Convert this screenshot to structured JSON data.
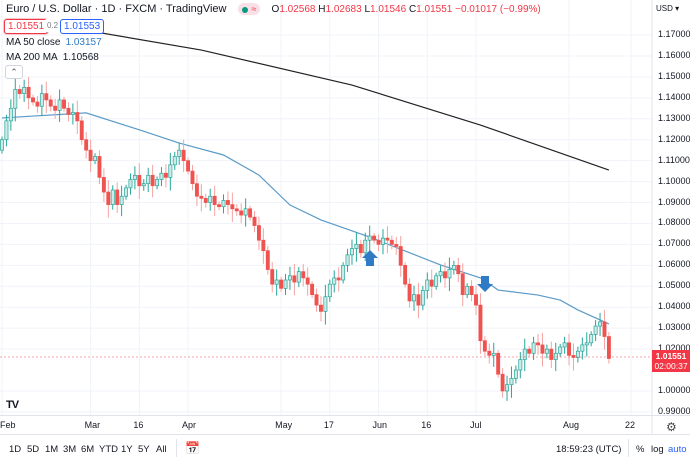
{
  "header": {
    "title": "Euro / U.S. Dollar · 1D · FXCM · TradingView",
    "market_status_icon": "market-open-dot-icon",
    "ohlc": {
      "o_label": "O",
      "o": "1.02568",
      "h_label": "H",
      "h": "1.02683",
      "l_label": "L",
      "l": "1.01546",
      "c_label": "C",
      "c": "1.01551",
      "change": "−0.01017 (−0.99%)"
    },
    "sell_price": "1.01551",
    "spread": "0.2",
    "buy_price": "1.01553"
  },
  "indicators": [
    {
      "label": "MA 50 close",
      "value": "1.03157",
      "color": "#5b9bc8"
    },
    {
      "label": "MA 200 MA",
      "value": "1.10568",
      "color": "#222222"
    }
  ],
  "price_axis": {
    "currency": "USD",
    "ticks": [
      "1.17000",
      "1.16000",
      "1.15000",
      "1.14000",
      "1.13000",
      "1.12000",
      "1.11000",
      "1.10000",
      "1.09000",
      "1.08000",
      "1.07000",
      "1.06000",
      "1.05000",
      "1.04000",
      "1.03000",
      "1.02000",
      "1.00000",
      "0.99000"
    ],
    "last_price": "1.01551",
    "countdown": "02:00:37"
  },
  "time_axis": {
    "ticks": [
      {
        "label": "Feb",
        "bar": 0
      },
      {
        "label": "Mar",
        "bar": 20
      },
      {
        "label": "16",
        "bar": 31
      },
      {
        "label": "Apr",
        "bar": 42
      },
      {
        "label": "May",
        "bar": 63
      },
      {
        "label": "17",
        "bar": 74
      },
      {
        "label": "Jun",
        "bar": 85
      },
      {
        "label": "16",
        "bar": 96
      },
      {
        "label": "Jul",
        "bar": 107
      },
      {
        "label": "Aug",
        "bar": 128
      },
      {
        "label": "22",
        "bar": 142
      }
    ]
  },
  "toolbar": {
    "ranges": [
      "1D",
      "5D",
      "1M",
      "3M",
      "6M",
      "YTD",
      "1Y",
      "5Y",
      "All"
    ],
    "time": "18:59:23 (UTC)",
    "percent": "%",
    "log": "log",
    "auto": "auto"
  },
  "colors": {
    "up": "#26a69a",
    "up_fill": "#cdeae6",
    "down": "#ef5350",
    "arrow": "#2f7bc6",
    "ma50": "#5b9bc8",
    "ma200": "#222222"
  },
  "annotations": [
    {
      "type": "arrow-up",
      "bar": 83,
      "price": 1.0635
    },
    {
      "type": "arrow-down",
      "bar": 109,
      "price": 1.051
    }
  ],
  "chart_data": {
    "type": "candlestick",
    "symbol": "EURUSD",
    "interval": "1D",
    "ylim": [
      0.985,
      1.175
    ],
    "closes": [
      1.12,
      1.129,
      1.135,
      1.144,
      1.142,
      1.145,
      1.14,
      1.138,
      1.136,
      1.142,
      1.139,
      1.136,
      1.134,
      1.139,
      1.135,
      1.132,
      1.133,
      1.129,
      1.12,
      1.115,
      1.11,
      1.112,
      1.102,
      1.095,
      1.089,
      1.096,
      1.089,
      1.093,
      1.097,
      1.101,
      1.103,
      1.098,
      1.099,
      1.103,
      1.098,
      1.101,
      1.104,
      1.102,
      1.108,
      1.112,
      1.115,
      1.11,
      1.105,
      1.099,
      1.093,
      1.092,
      1.09,
      1.093,
      1.089,
      1.088,
      1.091,
      1.089,
      1.087,
      1.086,
      1.084,
      1.087,
      1.083,
      1.079,
      1.072,
      1.067,
      1.058,
      1.051,
      1.053,
      1.049,
      1.053,
      1.055,
      1.052,
      1.057,
      1.054,
      1.051,
      1.046,
      1.041,
      1.038,
      1.045,
      1.051,
      1.054,
      1.053,
      1.06,
      1.065,
      1.068,
      1.07,
      1.066,
      1.072,
      1.074,
      1.072,
      1.07,
      1.073,
      1.072,
      1.07,
      1.069,
      1.06,
      1.051,
      1.043,
      1.046,
      1.041,
      1.048,
      1.053,
      1.05,
      1.055,
      1.057,
      1.054,
      1.058,
      1.06,
      1.056,
      1.046,
      1.05,
      1.046,
      1.041,
      1.024,
      1.019,
      1.017,
      1.018,
      1.008,
      1.0,
      1.003,
      1.006,
      1.01,
      1.015,
      1.02,
      1.018,
      1.023,
      1.022,
      1.018,
      1.02,
      1.015,
      1.018,
      1.021,
      1.023,
      1.017,
      1.016,
      1.019,
      1.022,
      1.023,
      1.027,
      1.031,
      1.033,
      1.026,
      1.01551
    ],
    "ma50": [
      [
        0,
        1.1304
      ],
      [
        19,
        1.1328
      ],
      [
        31,
        1.1247
      ],
      [
        40,
        1.1184
      ],
      [
        50,
        1.1127
      ],
      [
        58,
        1.1031
      ],
      [
        65,
        1.0888
      ],
      [
        72,
        1.0817
      ],
      [
        83,
        1.0735
      ],
      [
        99,
        1.0602
      ],
      [
        108,
        1.054
      ],
      [
        112,
        1.0482
      ],
      [
        121,
        1.0458
      ],
      [
        126,
        1.0434
      ],
      [
        130,
        1.0387
      ],
      [
        137,
        1.032
      ]
    ],
    "ma200": [
      [
        16,
        1.1733
      ],
      [
        45,
        1.1628
      ],
      [
        79,
        1.1461
      ],
      [
        108,
        1.127
      ],
      [
        137,
        1.1055
      ]
    ]
  }
}
